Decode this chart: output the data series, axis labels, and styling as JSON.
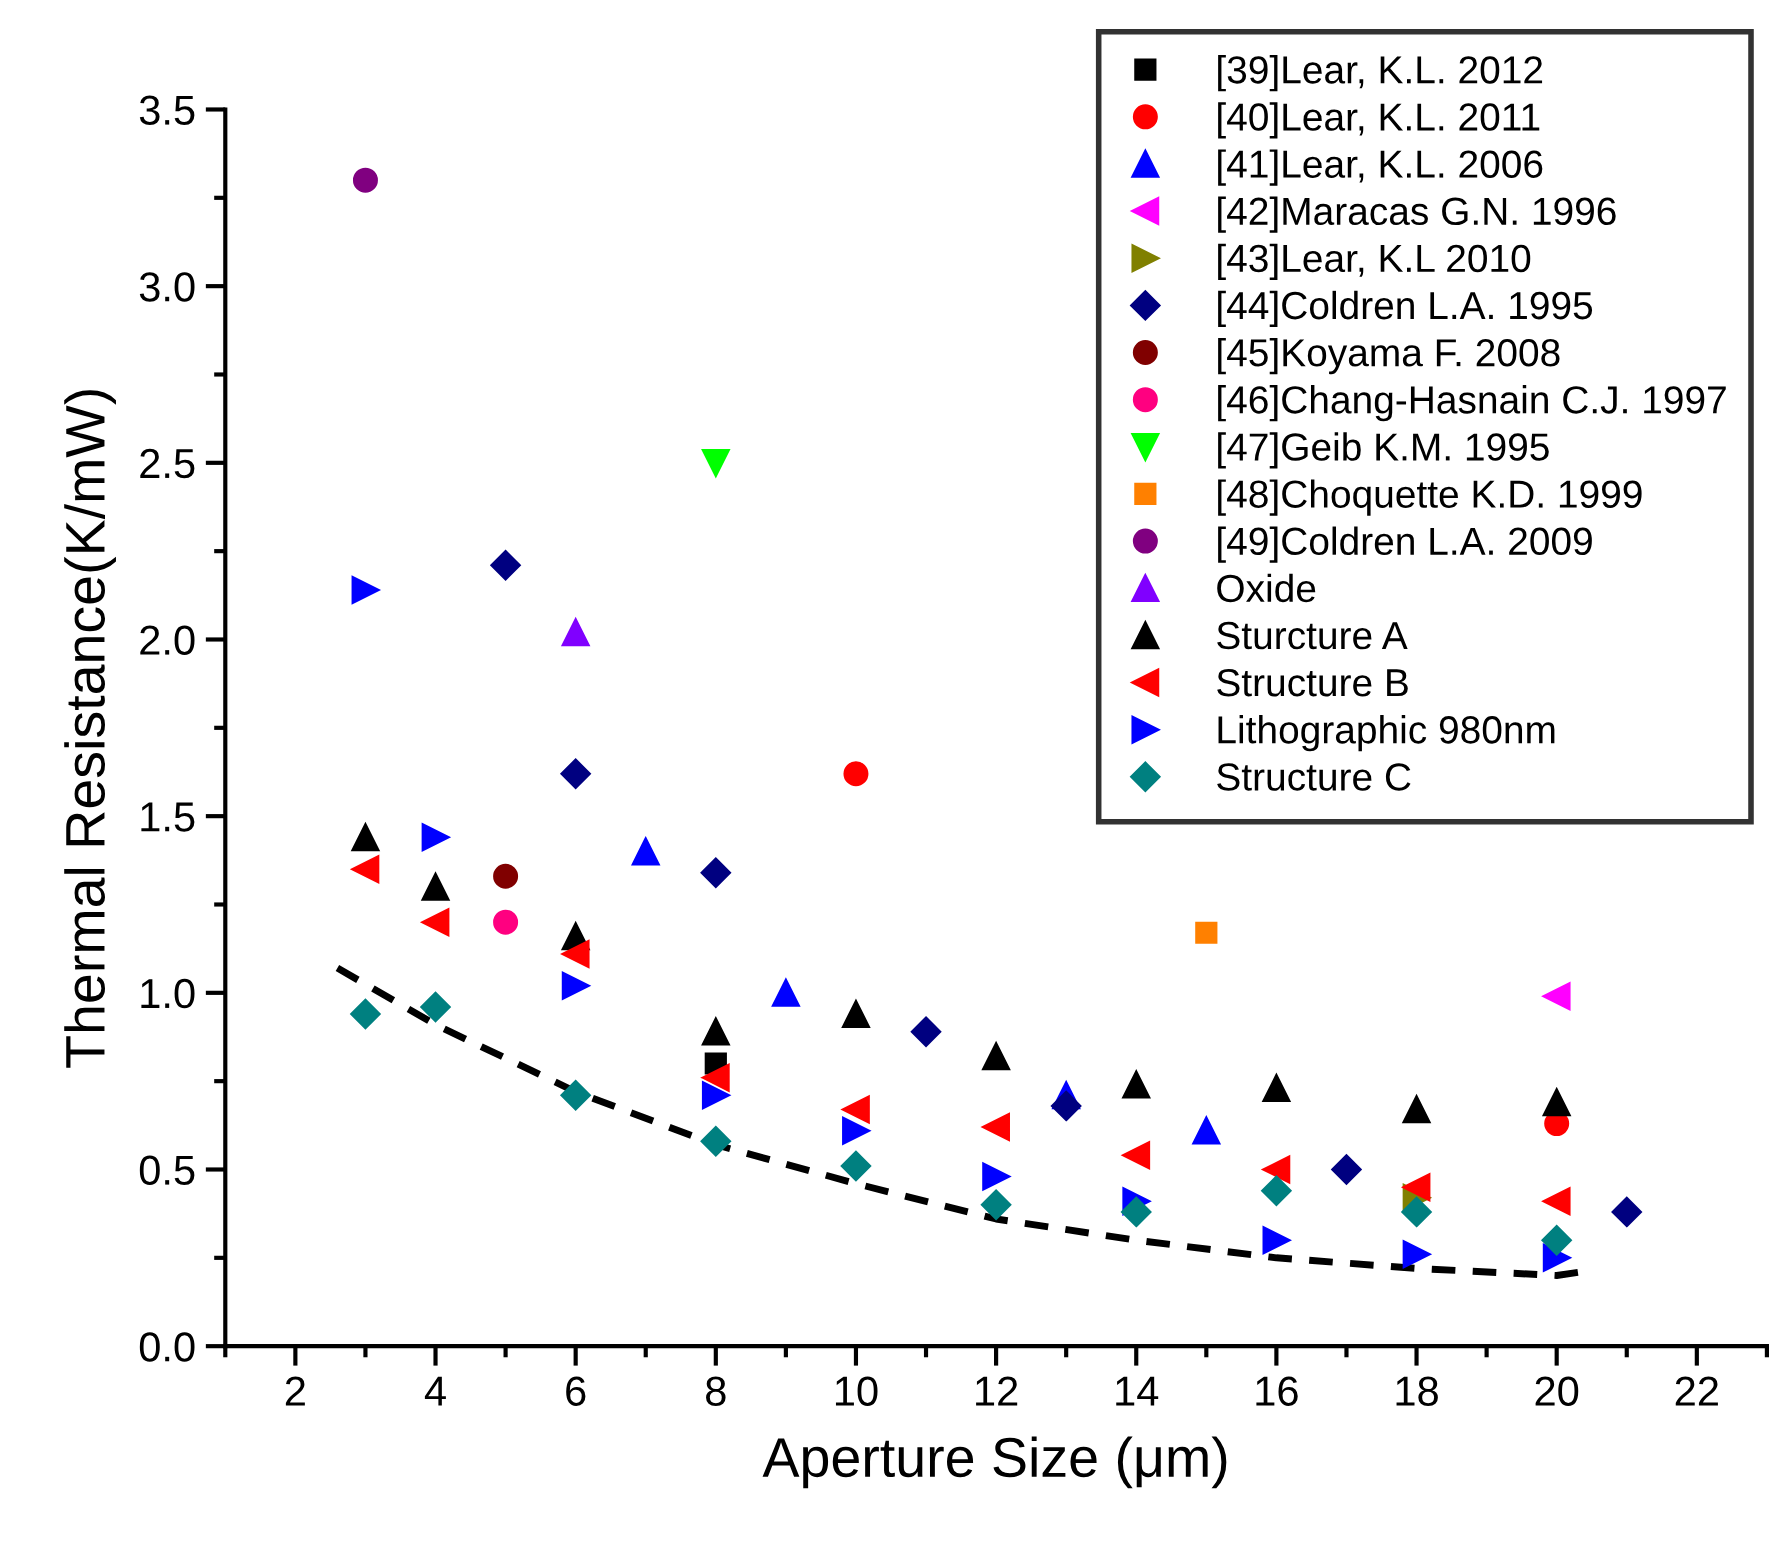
{
  "chart_data": {
    "type": "scatter",
    "xlabel": "Aperture Size (μm)",
    "ylabel": "Thermal Resistance(K/mW)",
    "xlim": [
      1,
      23
    ],
    "xticks": [
      2,
      4,
      6,
      8,
      10,
      12,
      14,
      16,
      18,
      20,
      22
    ],
    "ylim": [
      0,
      3.5
    ],
    "yticks": [
      {
        "value": 0,
        "label": "0.0"
      },
      0.5,
      {
        "value": 1,
        "label": "1.0"
      },
      1.5,
      {
        "value": 2,
        "label": "2.0"
      },
      2.5,
      {
        "value": 3,
        "label": "3.0"
      },
      3.5
    ],
    "grid": false,
    "legend": "top right",
    "series": [
      {
        "name": "[39]Lear, K.L. 2012",
        "color": "#000000",
        "marker": "square",
        "x": [
          8
        ],
        "values": [
          0.8
        ]
      },
      {
        "name": "[40]Lear, K.L. 2011",
        "color": "#ff0000",
        "marker": "circle",
        "x": [
          10,
          20
        ],
        "values": [
          1.62,
          0.63
        ]
      },
      {
        "name": "[41]Lear, K.L. 2006",
        "color": "#0000ff",
        "marker": "triangle",
        "x": [
          7,
          9,
          13,
          15
        ],
        "values": [
          1.4,
          1.0,
          0.71,
          0.61
        ]
      },
      {
        "name": "[42]Maracas G.N. 1996",
        "color": "#ff00ff",
        "marker": "triangle_left",
        "x": [
          20
        ],
        "values": [
          0.99
        ]
      },
      {
        "name": "[43]Lear, K.L 2010",
        "color": "#808000",
        "marker": "triangle_right",
        "x": [
          18
        ],
        "values": [
          0.42
        ]
      },
      {
        "name": "[44]Coldren L.A. 1995",
        "color": "#000080",
        "marker": "diamond",
        "x": [
          5,
          6,
          8,
          11,
          13,
          17,
          21
        ],
        "values": [
          2.21,
          1.62,
          1.34,
          0.89,
          0.68,
          0.5,
          0.38
        ]
      },
      {
        "name": "[45]Koyama F. 2008",
        "color": "#800000",
        "x": [
          5
        ],
        "values": [
          1.33
        ]
      },
      {
        "name": "[46]Chang-Hasnain C.J. 1997",
        "color": "#ff0080",
        "x": [
          5
        ],
        "values": [
          1.2
        ]
      },
      {
        "name": "[47]Geib K.M. 1995",
        "color": "#00ff00",
        "marker": "triangle_down",
        "x": [
          8
        ],
        "values": [
          2.5
        ]
      },
      {
        "name": "[48]Choquette K.D. 1999",
        "color": "#ff8000",
        "marker": "square",
        "x": [
          15
        ],
        "values": [
          1.17
        ]
      },
      {
        "name": "[49]Coldren L.A. 2009",
        "color": "#800080",
        "marker": "circle",
        "x": [
          3
        ],
        "values": [
          3.3
        ]
      },
      {
        "name": "Oxide",
        "color": "#8000ff",
        "marker": "triangle",
        "x": [
          6
        ],
        "values": [
          2.02
        ]
      },
      {
        "name": "Sturcture A",
        "color": "#000000",
        "marker": "triangle",
        "x": [
          3,
          4,
          6,
          8,
          10,
          12,
          14,
          16,
          18,
          20
        ],
        "values": [
          1.44,
          1.3,
          1.16,
          0.89,
          0.94,
          0.82,
          0.74,
          0.73,
          0.67,
          0.69
        ]
      },
      {
        "name": "Structure B",
        "color": "#ff0000",
        "marker": "triangle_left",
        "x": [
          3,
          4,
          6,
          8,
          10,
          12,
          14,
          16,
          18,
          20
        ],
        "values": [
          1.35,
          1.2,
          1.11,
          0.76,
          0.67,
          0.62,
          0.54,
          0.5,
          0.45,
          0.41
        ]
      },
      {
        "name": "Lithographic 980nm",
        "color": "#0000ff",
        "marker": "triangle_right",
        "x": [
          3,
          4,
          6,
          8,
          10,
          12,
          14,
          16,
          18,
          20
        ],
        "values": [
          2.14,
          1.44,
          1.02,
          0.71,
          0.61,
          0.48,
          0.41,
          0.3,
          0.26,
          0.25
        ]
      },
      {
        "name": "Structure C",
        "color": "#008080",
        "marker": "diamond",
        "x": [
          3,
          4,
          6,
          8,
          10,
          12,
          14,
          16,
          18,
          20
        ],
        "values": [
          0.94,
          0.96,
          0.71,
          0.58,
          0.51,
          0.4,
          0.38,
          0.44,
          0.38,
          0.3
        ]
      },
      {
        "type": "line",
        "color": "#000000",
        "line_style": "dashed",
        "marker": "none",
        "x": [
          2.6,
          4,
          6,
          8,
          10,
          12,
          14,
          16,
          18,
          20,
          20.35
        ],
        "values": [
          1.07,
          0.91,
          0.72,
          0.57,
          0.46,
          0.36,
          0.3,
          0.25,
          0.22,
          0.2,
          0.21
        ]
      }
    ]
  }
}
